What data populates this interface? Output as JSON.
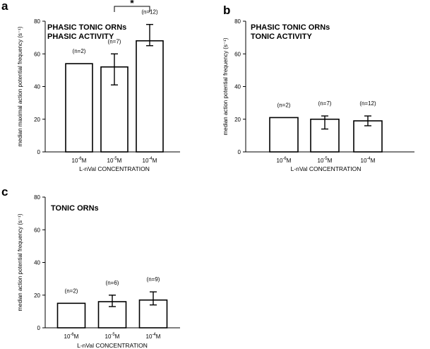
{
  "figure_title": "",
  "chart_data": [
    {
      "panel": "a",
      "type": "bar",
      "title_lines": [
        "PHASIC TONIC ORNs",
        "PHASIC ACTIVITY"
      ],
      "ylabel": "median maximal action potential frequency (s⁻¹)",
      "xlabel": "L-nVal CONCENTRATION",
      "categories": [
        {
          "base": "10",
          "exp": "-6",
          "unit": "M"
        },
        {
          "base": "10",
          "exp": "-5",
          "unit": "M"
        },
        {
          "base": "10",
          "exp": "-4",
          "unit": "M"
        }
      ],
      "values": [
        54,
        52,
        68
      ],
      "error_low": [
        null,
        41,
        65
      ],
      "error_high": [
        null,
        60,
        78
      ],
      "n_labels": [
        "(n=2)",
        "(n=7)",
        "(n=12)"
      ],
      "ylim": [
        0,
        80
      ],
      "yticks": [
        0,
        20,
        40,
        60,
        80
      ],
      "significance": {
        "from": 1,
        "to": 2,
        "label": "*"
      }
    },
    {
      "panel": "b",
      "type": "bar",
      "title_lines": [
        "PHASIC TONIC ORNs",
        "TONIC ACTIVITY"
      ],
      "ylabel": "median action potential frequency (s⁻¹)",
      "xlabel": "L-nVal CONCENTRATION",
      "categories": [
        {
          "base": "10",
          "exp": "-6",
          "unit": "M"
        },
        {
          "base": "10",
          "exp": "-5",
          "unit": "M"
        },
        {
          "base": "10",
          "exp": "-4",
          "unit": "M"
        }
      ],
      "values": [
        21,
        20,
        19
      ],
      "error_low": [
        null,
        14,
        16
      ],
      "error_high": [
        null,
        22,
        22
      ],
      "n_labels": [
        "(n=2)",
        "(n=7)",
        "(n=12)"
      ],
      "ylim": [
        0,
        80
      ],
      "yticks": [
        0,
        20,
        40,
        60,
        80
      ]
    },
    {
      "panel": "c",
      "type": "bar",
      "title_lines": [
        "TONIC ORNs"
      ],
      "ylabel": "median action potential frequency (s⁻¹)",
      "xlabel": "L-nVal CONCENTRATION",
      "categories": [
        {
          "base": "10",
          "exp": "-6",
          "unit": "M"
        },
        {
          "base": "10",
          "exp": "-5",
          "unit": "M"
        },
        {
          "base": "10",
          "exp": "-4",
          "unit": "M"
        }
      ],
      "values": [
        15,
        16,
        17
      ],
      "error_low": [
        null,
        13,
        14
      ],
      "error_high": [
        null,
        20,
        22
      ],
      "n_labels": [
        "(n=2)",
        "(n=6)",
        "(n=9)"
      ],
      "ylim": [
        0,
        80
      ],
      "yticks": [
        0,
        20,
        40,
        60,
        80
      ]
    }
  ]
}
